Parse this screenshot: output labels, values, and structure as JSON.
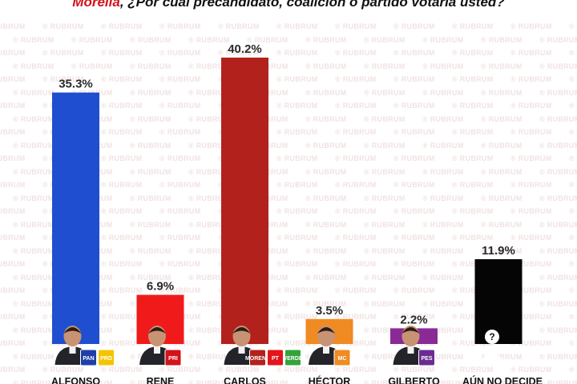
{
  "header": {
    "city": "Morelia",
    "question": ", ¿Por cuál precandidato, coalición o partido votaría usted?"
  },
  "watermark": {
    "text": "RUBRUM"
  },
  "chart_data": {
    "type": "bar",
    "categories": [
      "ALFONSO",
      "RENE",
      "CARLOS",
      "HÉCTOR",
      "GILBERTO",
      "AÚN NO DECIDE"
    ],
    "values": [
      35.3,
      6.9,
      40.2,
      3.5,
      2.2,
      11.9
    ],
    "value_labels": [
      "35.3%",
      "6.9%",
      "40.2%",
      "3.5%",
      "2.2%",
      "11.9%"
    ],
    "colors": [
      "#1f4fd0",
      "#f01a1a",
      "#b3211c",
      "#f08a22",
      "#8a2a96",
      "#050505"
    ],
    "party_logos": [
      [
        {
          "text": "PAN",
          "color": "#1f3fa8"
        },
        {
          "text": "PRD",
          "color": "#f5c400"
        }
      ],
      [
        {
          "text": "PRI",
          "color": "#d3121b"
        }
      ],
      [
        {
          "text": "MORENA",
          "color": "#b3211c"
        },
        {
          "text": "PT",
          "color": "#e3141b"
        },
        {
          "text": "VERDE",
          "color": "#35a33a"
        }
      ],
      [
        {
          "text": "MC",
          "color": "#f08a22"
        }
      ],
      [
        {
          "text": "PES",
          "color": "#6b2c91"
        }
      ],
      []
    ],
    "ylim": [
      0,
      40.2
    ],
    "grid": false,
    "legend": "none"
  }
}
